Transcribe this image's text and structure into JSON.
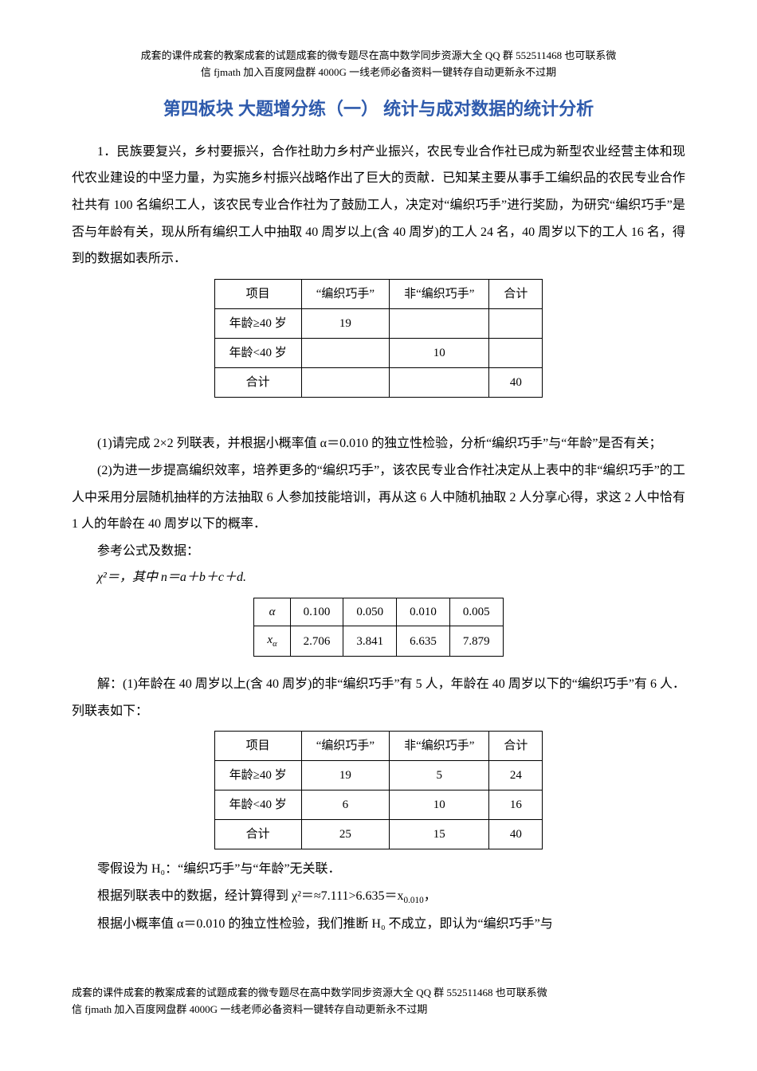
{
  "header_note_line1": "成套的课件成套的教案成套的试题成套的微专题尽在高中数学同步资源大全 QQ 群 552511468 也可联系微",
  "header_note_line2": "信 fjmath 加入百度网盘群 4000G 一线老师必备资料一键转存自动更新永不过期",
  "title": "第四板块 大题增分练（一） 统计与成对数据的统计分析",
  "problem": {
    "p1": "1．民族要复兴，乡村要振兴，合作社助力乡村产业振兴，农民专业合作社已成为新型农业经营主体和现代农业建设的中坚力量，为实施乡村振兴战略作出了巨大的贡献．已知某主要从事手工编织品的农民专业合作社共有 100 名编织工人，该农民专业合作社为了鼓励工人，决定对“编织巧手”进行奖励，为研究“编织巧手”是否与年龄有关，现从所有编织工人中抽取 40 周岁以上(含 40 周岁)的工人 24 名，40 周岁以下的工人 16 名，得到的数据如表所示．",
    "table1": {
      "headers": [
        "项目",
        "“编织巧手”",
        "非“编织巧手”",
        "合计"
      ],
      "rows": [
        [
          "年龄≥40 岁",
          "19",
          "",
          ""
        ],
        [
          "年龄<40 岁",
          "",
          "10",
          ""
        ],
        [
          "合计",
          "",
          "",
          "40"
        ]
      ],
      "col_widths": [
        "140px",
        "140px",
        "160px",
        "90px"
      ]
    },
    "q1": "(1)请完成 2×2 列联表，并根据小概率值 α＝0.010 的独立性检验，分析“编织巧手”与“年龄”是否有关；",
    "q2": "(2)为进一步提高编织效率，培养更多的“编织巧手”，该农民专业合作社决定从上表中的非“编织巧手”的工人中采用分层随机抽样的方法抽取 6 人参加技能培训，再从这 6 人中随机抽取 2 人分享心得，求这 2 人中恰有 1 人的年龄在 40 周岁以下的概率．",
    "ref_label": "参考公式及数据：",
    "chi_formula": "χ²＝，其中 n＝a＋b＋c＋d.",
    "ref_table": {
      "row1_label": "α",
      "row1": [
        "0.100",
        "0.050",
        "0.010",
        "0.005"
      ],
      "row2_label": "xα",
      "row2": [
        "2.706",
        "3.841",
        "6.635",
        "7.879"
      ]
    }
  },
  "solution": {
    "s1": "解：(1)年龄在 40 周岁以上(含 40 周岁)的非“编织巧手”有 5 人，年龄在 40 周岁以下的“编织巧手”有 6 人．列联表如下：",
    "table2": {
      "headers": [
        "项目",
        "“编织巧手”",
        "非“编织巧手”",
        "合计"
      ],
      "rows": [
        [
          "年龄≥40 岁",
          "19",
          "5",
          "24"
        ],
        [
          "年龄<40 岁",
          "6",
          "10",
          "16"
        ],
        [
          "合计",
          "25",
          "15",
          "40"
        ]
      ],
      "col_widths": [
        "130px",
        "130px",
        "150px",
        "80px"
      ]
    },
    "s2": "零假设为 H₀：“编织巧手”与“年龄”无关联．",
    "s3_a": "根据列联表中的数据，经计算得到 χ²＝≈7.111>6.635＝x",
    "s3_b": "0.010",
    "s3_c": "，",
    "s4": "根据小概率值 α＝0.010 的独立性检验，我们推断 H₀ 不成立，即认为“编织巧手”与"
  },
  "footer_note_line1": "成套的课件成套的教案成套的试题成套的微专题尽在高中数学同步资源大全 QQ 群 552511468 也可联系微",
  "footer_note_line2": "信 fjmath 加入百度网盘群 4000G 一线老师必备资料一键转存自动更新永不过期"
}
